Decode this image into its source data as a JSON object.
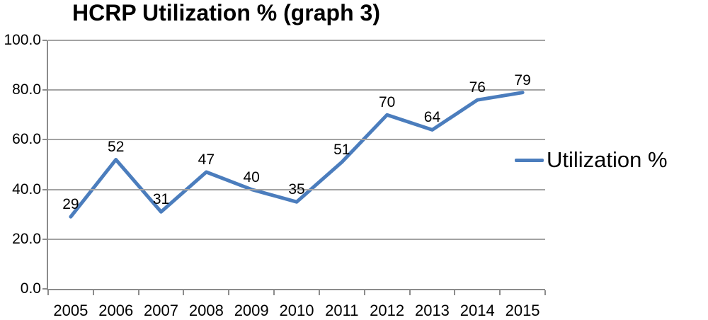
{
  "chart_data": {
    "type": "line",
    "title": "HCRP Utilization % (graph 3)",
    "categories": [
      "2005",
      "2006",
      "2007",
      "2008",
      "2009",
      "2010",
      "2011",
      "2012",
      "2013",
      "2014",
      "2015"
    ],
    "series": [
      {
        "name": "Utilization %",
        "values": [
          29,
          52,
          31,
          47,
          40,
          35,
          51,
          70,
          64,
          76,
          79
        ]
      }
    ],
    "data_labels": [
      "29",
      "52",
      "31",
      "47",
      "40",
      "35",
      "51",
      "70",
      "64",
      "76",
      "79"
    ],
    "xlabel": "",
    "ylabel": "",
    "ylim": [
      0,
      100
    ],
    "ytick_step": 20,
    "ytick_labels": [
      "0.0",
      "20.0",
      "40.0",
      "60.0",
      "80.0",
      "100.0"
    ],
    "grid": true,
    "legend_position": "right",
    "colors": {
      "line": "#4b7dbd",
      "gridline": "#a3a3a3",
      "axis": "#8c8c8c",
      "text": "#000000",
      "background": "#ffffff"
    }
  },
  "legend": {
    "label": "Utilization %"
  }
}
